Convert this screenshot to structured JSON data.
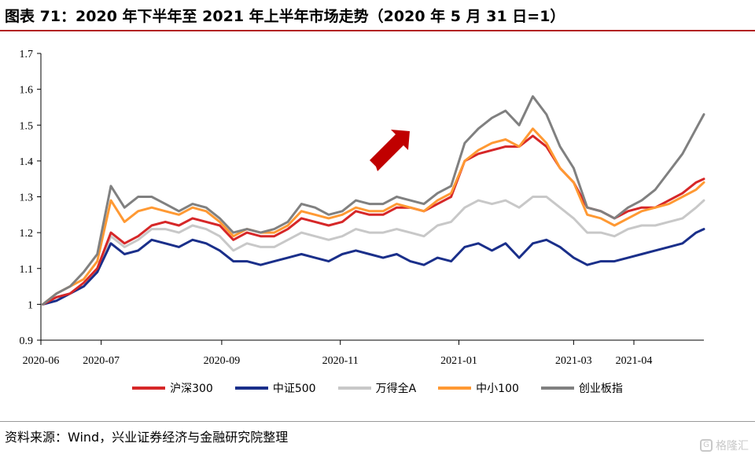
{
  "header": {
    "title": "图表 71：2020 年下半年至 2021 年上半年市场走势（2020 年 5 月 31 日=1）"
  },
  "footer": {
    "source": "资料来源：Wind，兴业证券经济与金融研究院整理",
    "watermark": "格隆汇",
    "watermark_icon": "G"
  },
  "colors": {
    "title_rule": "#b22222",
    "arrow": "#c00000"
  },
  "annotations": [
    {
      "type": "arrow",
      "shape": "block-arrow-up-right",
      "color": "#c00000"
    }
  ],
  "chart_data": {
    "type": "line",
    "title": "",
    "xlabel": "",
    "ylabel": "",
    "ylim": [
      0.9,
      1.7
    ],
    "yticks": [
      "0.9",
      "1",
      "1.1",
      "1.2",
      "1.3",
      "1.4",
      "1.5",
      "1.6",
      "1.7"
    ],
    "xlim": [
      "2020-05-31",
      "2021-05-07"
    ],
    "xticks": [
      "2020-06",
      "2020-07",
      "2020-09",
      "2020-11",
      "2021-01",
      "2021-03",
      "2021-04"
    ],
    "xtick_dates": [
      "2020-05-31",
      "2020-07-01",
      "2020-09-01",
      "2020-11-01",
      "2021-01-01",
      "2021-03-01",
      "2021-04-01"
    ],
    "grid": false,
    "legend": "bottom",
    "x": [
      "2020-06-01",
      "2020-06-08",
      "2020-06-15",
      "2020-06-22",
      "2020-06-29",
      "2020-07-06",
      "2020-07-13",
      "2020-07-20",
      "2020-07-27",
      "2020-08-03",
      "2020-08-10",
      "2020-08-17",
      "2020-08-24",
      "2020-08-31",
      "2020-09-07",
      "2020-09-14",
      "2020-09-21",
      "2020-09-28",
      "2020-10-05",
      "2020-10-12",
      "2020-10-19",
      "2020-10-26",
      "2020-11-02",
      "2020-11-09",
      "2020-11-16",
      "2020-11-23",
      "2020-11-30",
      "2020-12-07",
      "2020-12-14",
      "2020-12-21",
      "2020-12-28",
      "2021-01-04",
      "2021-01-11",
      "2021-01-18",
      "2021-01-25",
      "2021-02-01",
      "2021-02-08",
      "2021-02-15",
      "2021-02-22",
      "2021-03-01",
      "2021-03-08",
      "2021-03-15",
      "2021-03-22",
      "2021-03-29",
      "2021-04-05",
      "2021-04-12",
      "2021-04-19",
      "2021-04-26",
      "2021-05-03",
      "2021-05-07"
    ],
    "series": [
      {
        "name": "沪深300",
        "color": "#d62728",
        "values": [
          1.0,
          1.02,
          1.03,
          1.06,
          1.1,
          1.2,
          1.17,
          1.19,
          1.22,
          1.23,
          1.22,
          1.24,
          1.23,
          1.22,
          1.18,
          1.2,
          1.19,
          1.19,
          1.21,
          1.24,
          1.23,
          1.22,
          1.23,
          1.26,
          1.25,
          1.25,
          1.27,
          1.27,
          1.26,
          1.28,
          1.3,
          1.4,
          1.42,
          1.43,
          1.44,
          1.44,
          1.47,
          1.44,
          1.38,
          1.34,
          1.27,
          1.26,
          1.24,
          1.26,
          1.27,
          1.27,
          1.29,
          1.31,
          1.34,
          1.35
        ]
      },
      {
        "name": "中证500",
        "color": "#1a2f8a",
        "values": [
          1.0,
          1.01,
          1.03,
          1.05,
          1.09,
          1.17,
          1.14,
          1.15,
          1.18,
          1.17,
          1.16,
          1.18,
          1.17,
          1.15,
          1.12,
          1.12,
          1.11,
          1.12,
          1.13,
          1.14,
          1.13,
          1.12,
          1.14,
          1.15,
          1.14,
          1.13,
          1.14,
          1.12,
          1.11,
          1.13,
          1.12,
          1.16,
          1.17,
          1.15,
          1.17,
          1.13,
          1.17,
          1.18,
          1.16,
          1.13,
          1.11,
          1.12,
          1.12,
          1.13,
          1.14,
          1.15,
          1.16,
          1.17,
          1.2,
          1.21
        ]
      },
      {
        "name": "万得全A",
        "color": "#c8c8c8",
        "values": [
          1.0,
          1.02,
          1.03,
          1.05,
          1.09,
          1.19,
          1.16,
          1.18,
          1.21,
          1.21,
          1.2,
          1.22,
          1.21,
          1.19,
          1.15,
          1.17,
          1.16,
          1.16,
          1.18,
          1.2,
          1.19,
          1.18,
          1.19,
          1.21,
          1.2,
          1.2,
          1.21,
          1.2,
          1.19,
          1.22,
          1.23,
          1.27,
          1.29,
          1.28,
          1.29,
          1.27,
          1.3,
          1.3,
          1.27,
          1.24,
          1.2,
          1.2,
          1.19,
          1.21,
          1.22,
          1.22,
          1.23,
          1.24,
          1.27,
          1.29
        ]
      },
      {
        "name": "中小100",
        "color": "#ff9933",
        "values": [
          1.0,
          1.03,
          1.05,
          1.07,
          1.12,
          1.29,
          1.23,
          1.26,
          1.27,
          1.26,
          1.25,
          1.27,
          1.26,
          1.23,
          1.19,
          1.21,
          1.2,
          1.2,
          1.22,
          1.26,
          1.25,
          1.24,
          1.25,
          1.27,
          1.26,
          1.26,
          1.28,
          1.27,
          1.26,
          1.29,
          1.31,
          1.4,
          1.43,
          1.45,
          1.46,
          1.44,
          1.49,
          1.45,
          1.38,
          1.34,
          1.25,
          1.24,
          1.22,
          1.24,
          1.26,
          1.27,
          1.28,
          1.3,
          1.32,
          1.34
        ]
      },
      {
        "name": "创业板指",
        "color": "#808080",
        "values": [
          1.0,
          1.03,
          1.05,
          1.09,
          1.14,
          1.33,
          1.27,
          1.3,
          1.3,
          1.28,
          1.26,
          1.28,
          1.27,
          1.24,
          1.2,
          1.21,
          1.2,
          1.21,
          1.23,
          1.28,
          1.27,
          1.25,
          1.26,
          1.29,
          1.28,
          1.28,
          1.3,
          1.29,
          1.28,
          1.31,
          1.33,
          1.45,
          1.49,
          1.52,
          1.54,
          1.5,
          1.58,
          1.53,
          1.44,
          1.38,
          1.27,
          1.26,
          1.24,
          1.27,
          1.29,
          1.32,
          1.37,
          1.42,
          1.49,
          1.53
        ]
      }
    ]
  }
}
